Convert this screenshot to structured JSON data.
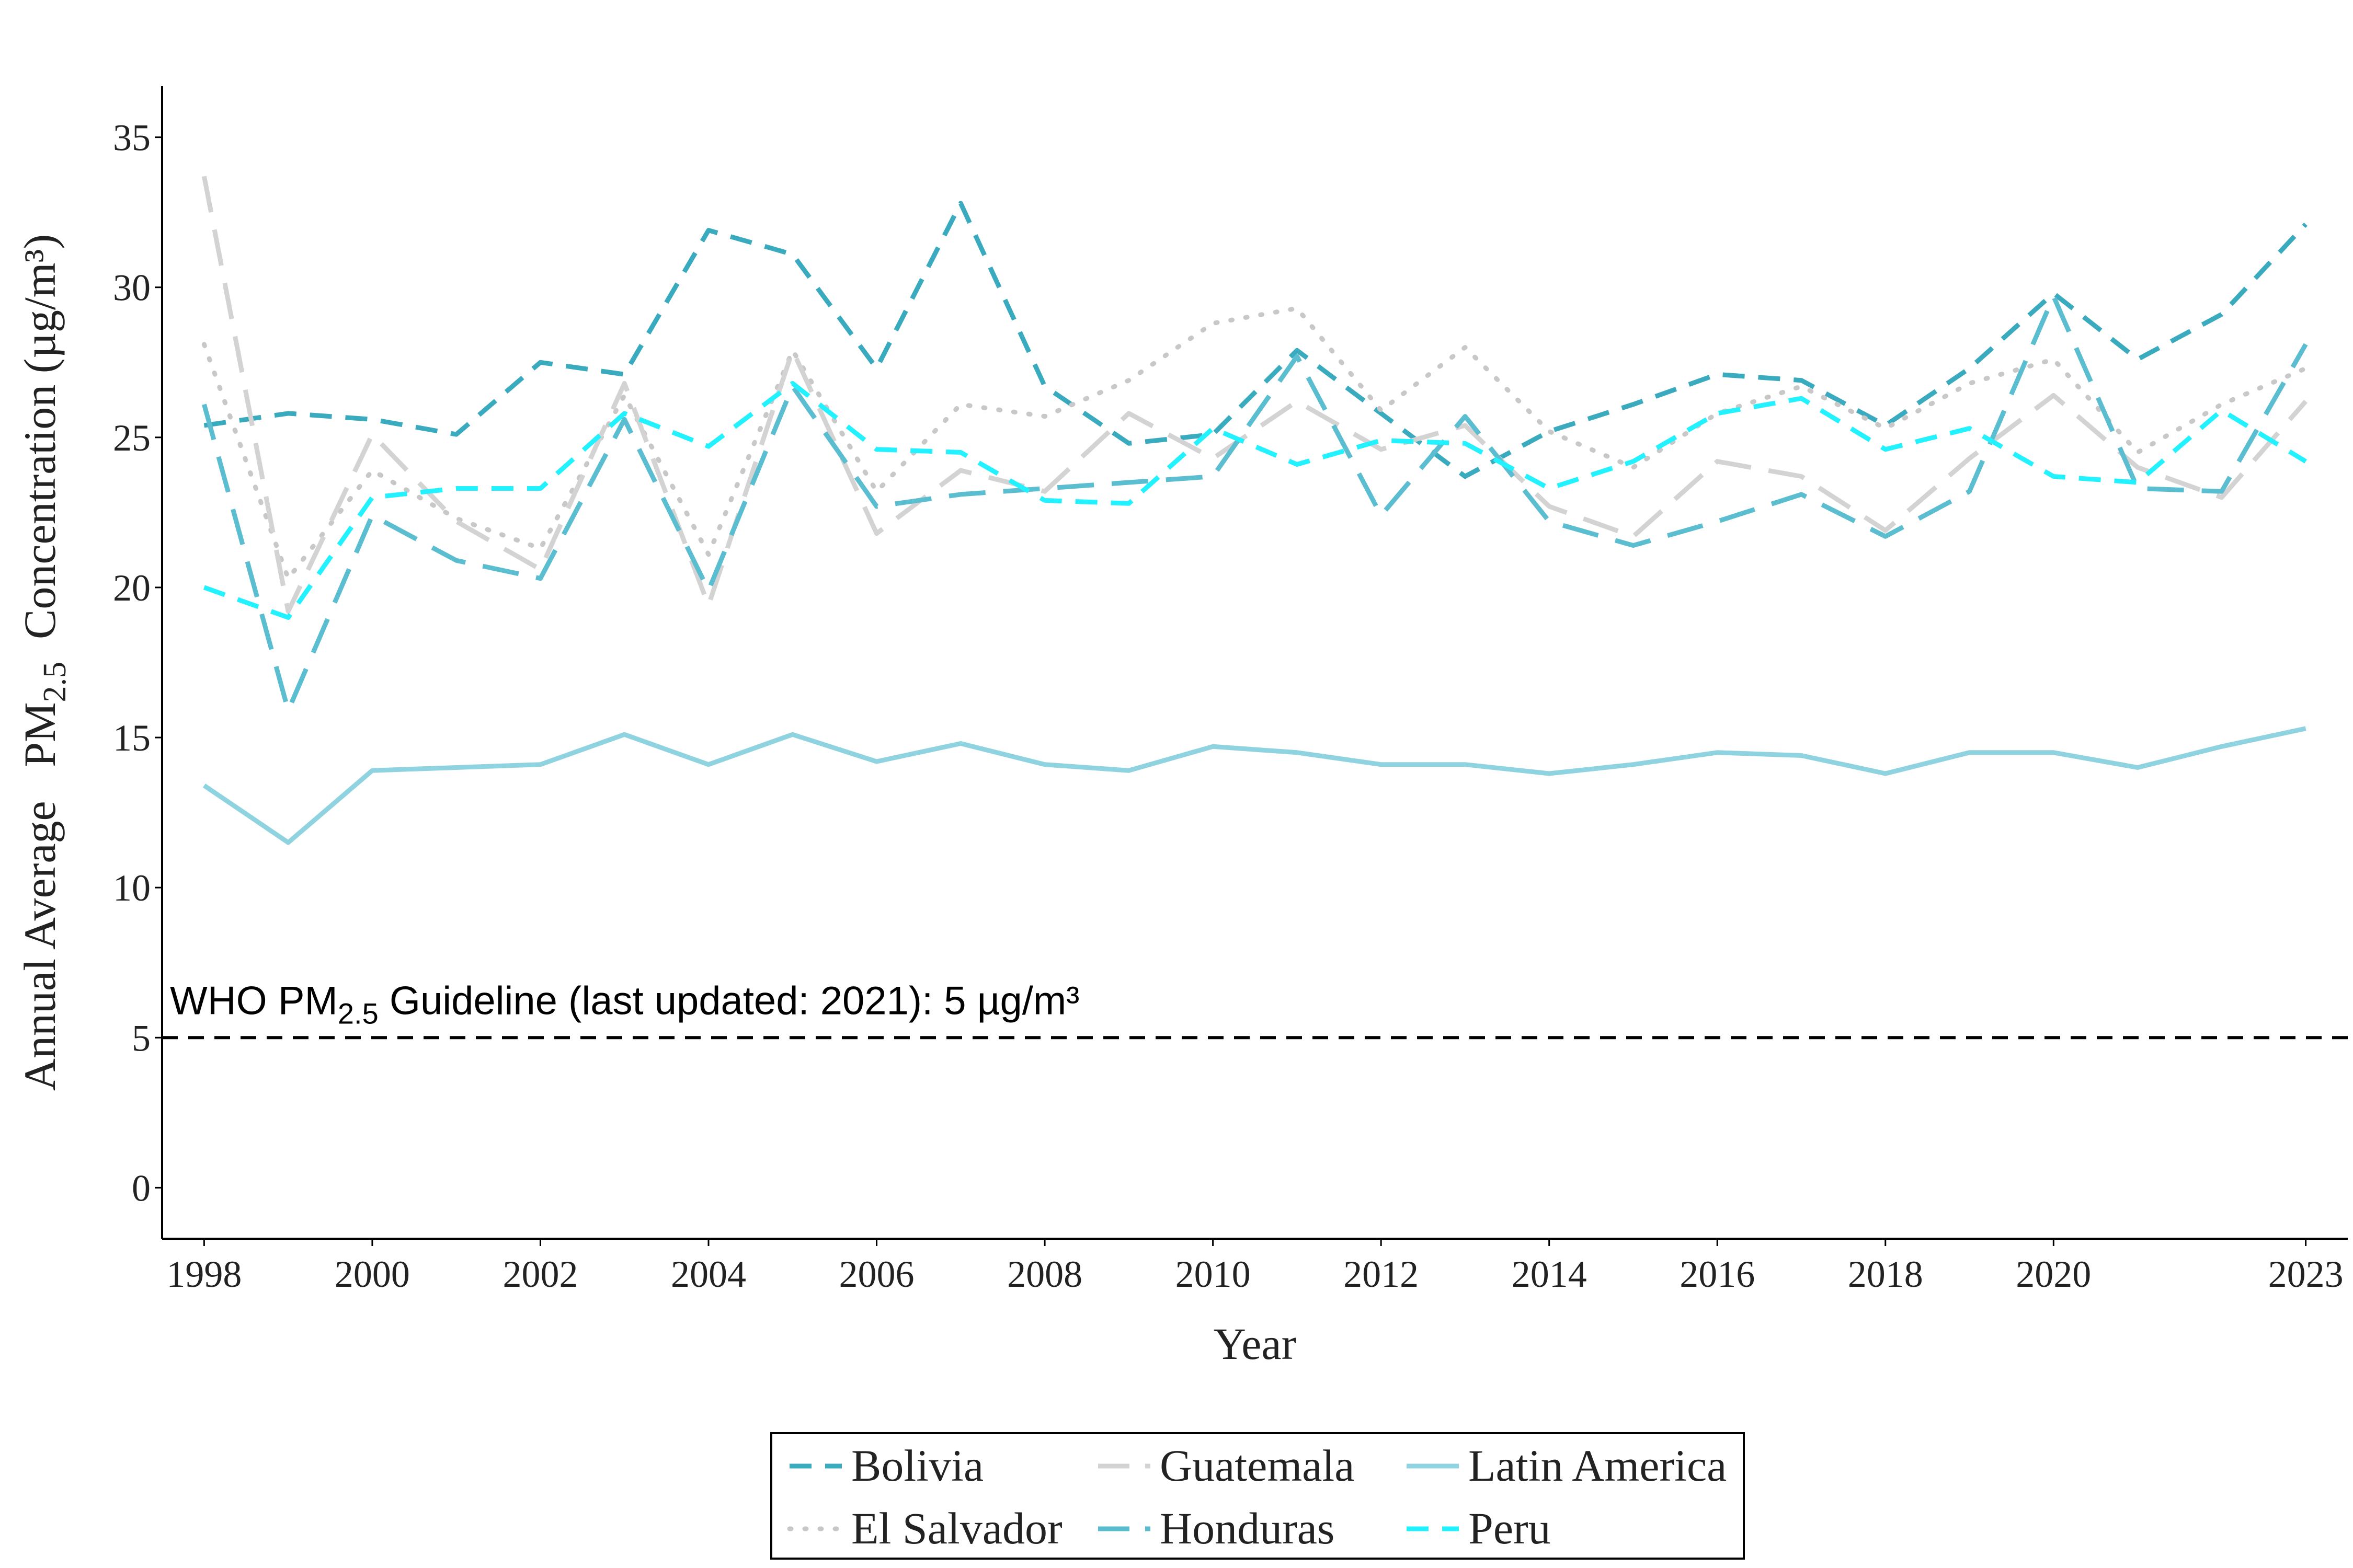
{
  "chart_data": {
    "type": "line",
    "xlabel": "Year",
    "ylabel": {
      "prefix": "Annual Average   PM",
      "subscript": "2.5",
      "suffix": "  Concentration (µg/m³)"
    },
    "xlim": [
      1997.5,
      2023.5
    ],
    "ylim": [
      -1.7,
      36.7
    ],
    "x_ticks": [
      1998,
      2000,
      2002,
      2004,
      2006,
      2008,
      2010,
      2012,
      2014,
      2016,
      2018,
      2020,
      2023
    ],
    "x_tick_labels": [
      "1998",
      "2000",
      "2002",
      "2004",
      "2006",
      "2008",
      "2010",
      "2012",
      "2014",
      "2016",
      "2018",
      "2020",
      "2023"
    ],
    "y_ticks": [
      0,
      5,
      10,
      15,
      20,
      25,
      30,
      35
    ],
    "y_tick_labels": [
      "0",
      "5",
      "10",
      "15",
      "20",
      "25",
      "30",
      "35"
    ],
    "grid": false,
    "legend_placement": "bottom",
    "x": [
      1998,
      1999,
      2000,
      2001,
      2002,
      2003,
      2004,
      2005,
      2006,
      2007,
      2008,
      2009,
      2010,
      2011,
      2012,
      2013,
      2014,
      2015,
      2016,
      2017,
      2018,
      2019,
      2020,
      2021,
      2022,
      2023
    ],
    "series": [
      {
        "name": "Bolivia",
        "color": "#3aabbf",
        "style": "dashed",
        "values": [
          25.4,
          25.8,
          25.6,
          25.1,
          27.5,
          27.1,
          31.9,
          31.1,
          27.3,
          32.8,
          26.7,
          24.8,
          25.1,
          27.9,
          25.8,
          23.7,
          25.2,
          26.1,
          27.1,
          26.9,
          25.4,
          27.3,
          29.8,
          27.6,
          29.1,
          32.1
        ]
      },
      {
        "name": "El Salvador",
        "color": "#c8c8c8",
        "style": "dotted",
        "values": [
          28.1,
          20.3,
          23.9,
          22.3,
          21.3,
          26.4,
          21.1,
          27.9,
          23.2,
          26.1,
          25.7,
          26.9,
          28.8,
          29.3,
          25.9,
          28.0,
          25.2,
          24.0,
          25.8,
          26.7,
          25.3,
          26.8,
          27.6,
          24.5,
          26.1,
          27.3
        ]
      },
      {
        "name": "Guatemala",
        "color": "#d3d3d3",
        "style": "longdash",
        "values": [
          33.7,
          19.2,
          25.1,
          22.2,
          20.6,
          26.8,
          19.4,
          27.9,
          21.8,
          23.9,
          23.2,
          25.8,
          24.3,
          26.2,
          24.6,
          25.4,
          22.7,
          21.7,
          24.2,
          23.7,
          21.9,
          24.3,
          26.4,
          24.0,
          23.0,
          26.2
        ]
      },
      {
        "name": "Honduras",
        "color": "#5bbdd0",
        "style": "longdash",
        "values": [
          26.1,
          15.9,
          22.4,
          20.9,
          20.3,
          25.6,
          19.9,
          26.7,
          22.7,
          23.1,
          23.3,
          23.5,
          23.7,
          27.7,
          22.4,
          25.7,
          22.2,
          21.4,
          22.2,
          23.1,
          21.7,
          23.2,
          29.7,
          23.3,
          23.2,
          28.1
        ]
      },
      {
        "name": "Latin America",
        "color": "#8fd3e0",
        "style": "solid",
        "values": [
          13.4,
          11.5,
          13.9,
          14.0,
          14.1,
          15.1,
          14.1,
          15.1,
          14.2,
          14.8,
          14.1,
          13.9,
          14.7,
          14.5,
          14.1,
          14.1,
          13.8,
          14.1,
          14.5,
          14.4,
          13.8,
          14.5,
          14.5,
          14.0,
          14.7,
          15.3
        ]
      },
      {
        "name": "Peru",
        "color": "#22f2ff",
        "style": "dashed",
        "values": [
          20.0,
          19.0,
          23.0,
          23.3,
          23.3,
          25.8,
          24.7,
          26.8,
          24.6,
          24.5,
          22.9,
          22.8,
          25.3,
          24.1,
          24.9,
          24.8,
          23.3,
          24.2,
          25.8,
          26.3,
          24.6,
          25.3,
          23.7,
          23.5,
          25.9,
          24.2
        ]
      }
    ],
    "reference_line": {
      "y": 5,
      "label_prefix": "WHO PM",
      "label_subscript": "2.5",
      "label_suffix": " Guideline (last updated: 2021): 5 µg/m³",
      "color": "#000000"
    },
    "legend_order": [
      "Bolivia",
      "Guatemala",
      "Latin America",
      "El Salvador",
      "Honduras",
      "Peru"
    ]
  }
}
